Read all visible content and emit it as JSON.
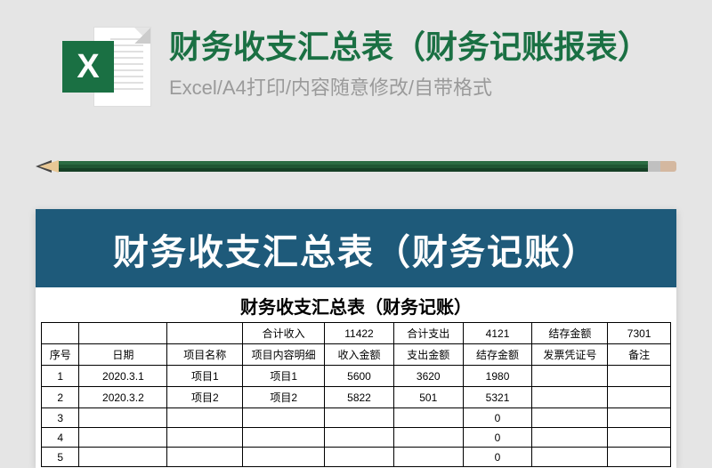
{
  "header": {
    "main_title": "财务收支汇总表（财务记账报表）",
    "subtitle": "Excel/A4打印/内容随意修改/自带格式",
    "icon_letter": "X"
  },
  "sheet": {
    "band_title": "财务收支汇总表（财务记账）",
    "inner_title": "财务收支汇总表（财务记账）",
    "summary": {
      "total_income_label": "合计收入",
      "total_income_value": "11422",
      "total_expense_label": "合计支出",
      "total_expense_value": "4121",
      "balance_label": "结存金额",
      "balance_value": "7301"
    },
    "columns": {
      "seq": "序号",
      "date": "日期",
      "project_name": "项目名称",
      "project_detail": "项目内容明细",
      "income_amount": "收入金额",
      "expense_amount": "支出金额",
      "balance_amount": "结存金额",
      "invoice_no": "发票凭证号",
      "remark": "备注"
    },
    "rows": [
      {
        "seq": "1",
        "date": "2020.3.1",
        "project_name": "项目1",
        "project_detail": "项目1",
        "income": "5600",
        "expense": "3620",
        "balance": "1980",
        "invoice": "",
        "remark": ""
      },
      {
        "seq": "2",
        "date": "2020.3.2",
        "project_name": "项目2",
        "project_detail": "项目2",
        "income": "5822",
        "expense": "501",
        "balance": "5321",
        "invoice": "",
        "remark": ""
      },
      {
        "seq": "3",
        "date": "",
        "project_name": "",
        "project_detail": "",
        "income": "",
        "expense": "",
        "balance": "0",
        "invoice": "",
        "remark": ""
      },
      {
        "seq": "4",
        "date": "",
        "project_name": "",
        "project_detail": "",
        "income": "",
        "expense": "",
        "balance": "0",
        "invoice": "",
        "remark": ""
      },
      {
        "seq": "5",
        "date": "",
        "project_name": "",
        "project_detail": "",
        "income": "",
        "expense": "",
        "balance": "0",
        "invoice": "",
        "remark": ""
      }
    ]
  },
  "styling": {
    "background_color": "#e5e5e5",
    "title_color": "#1a7043",
    "subtitle_color": "#9a9a9a",
    "excel_icon_color": "#1a7043",
    "band_background": "#1e5a7a",
    "band_text_color": "#ffffff",
    "table_border_color": "#000000",
    "col_widths_pct": [
      6,
      14,
      12,
      13,
      11,
      11,
      11,
      12,
      10
    ]
  }
}
